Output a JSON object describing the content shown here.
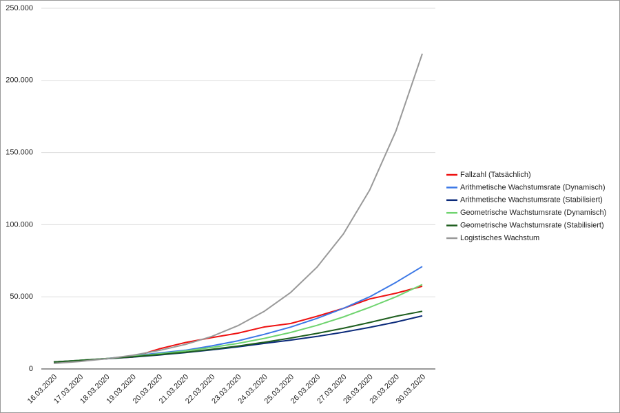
{
  "chart_data": {
    "type": "line",
    "categories": [
      "16.03.2020",
      "17.03.2020",
      "18.03.2020",
      "19.03.2020",
      "20.03.2020",
      "21.03.2020",
      "22.03.2020",
      "23.03.2020",
      "24.03.2020",
      "25.03.2020",
      "26.03.2020",
      "27.03.2020",
      "28.03.2020",
      "29.03.2020",
      "30.03.2020"
    ],
    "series": [
      {
        "name": "Fallzahl (Tatsächlich)",
        "color": "#ee1111",
        "values": [
          4800,
          6000,
          7200,
          8200,
          13900,
          18300,
          21700,
          24800,
          29100,
          31500,
          36500,
          42000,
          48500,
          52500,
          57300
        ]
      },
      {
        "name": "Arithmetische Wachstumsrate (Dynamisch)",
        "color": "#3c78e6",
        "values": [
          4800,
          6000,
          7200,
          9000,
          11000,
          13000,
          16000,
          19500,
          24000,
          29000,
          35000,
          42000,
          50000,
          60000,
          71000
        ]
      },
      {
        "name": "Arithmetische Wachstumsrate (Stabilisiert)",
        "color": "#0b2a7a",
        "values": [
          4800,
          5900,
          7000,
          8200,
          9700,
          11300,
          13200,
          15300,
          17700,
          20000,
          22500,
          25500,
          28800,
          32500,
          36800
        ]
      },
      {
        "name": "Geometrische Wachstumsrate (Dynamisch)",
        "color": "#6fd46f",
        "values": [
          4800,
          6000,
          7200,
          8800,
          10500,
          12500,
          14900,
          17700,
          21200,
          25300,
          30200,
          36000,
          42700,
          50000,
          58500
        ]
      },
      {
        "name": "Geometrische Wachstumsrate (Stabilisiert)",
        "color": "#1e5e1e",
        "values": [
          4800,
          5900,
          7100,
          8400,
          9900,
          11600,
          13600,
          15900,
          18500,
          21400,
          24600,
          28200,
          32200,
          36500,
          40000
        ]
      },
      {
        "name": "Logistisches Wachstum",
        "color": "#999999",
        "values": [
          3800,
          5200,
          7000,
          9500,
          12800,
          17000,
          22500,
          30000,
          40000,
          53000,
          70500,
          93500,
          124000,
          165000,
          218500
        ]
      }
    ],
    "ylim": [
      0,
      250000
    ],
    "yticks": [
      0,
      {
        "value": 50000,
        "label": "50.000"
      },
      {
        "value": 100000,
        "label": "100.000"
      },
      {
        "value": 150000,
        "label": "150.000"
      },
      {
        "value": 200000,
        "label": "200.000"
      },
      {
        "value": 250000,
        "label": "250.000"
      }
    ],
    "grid": true,
    "legend": "right"
  }
}
